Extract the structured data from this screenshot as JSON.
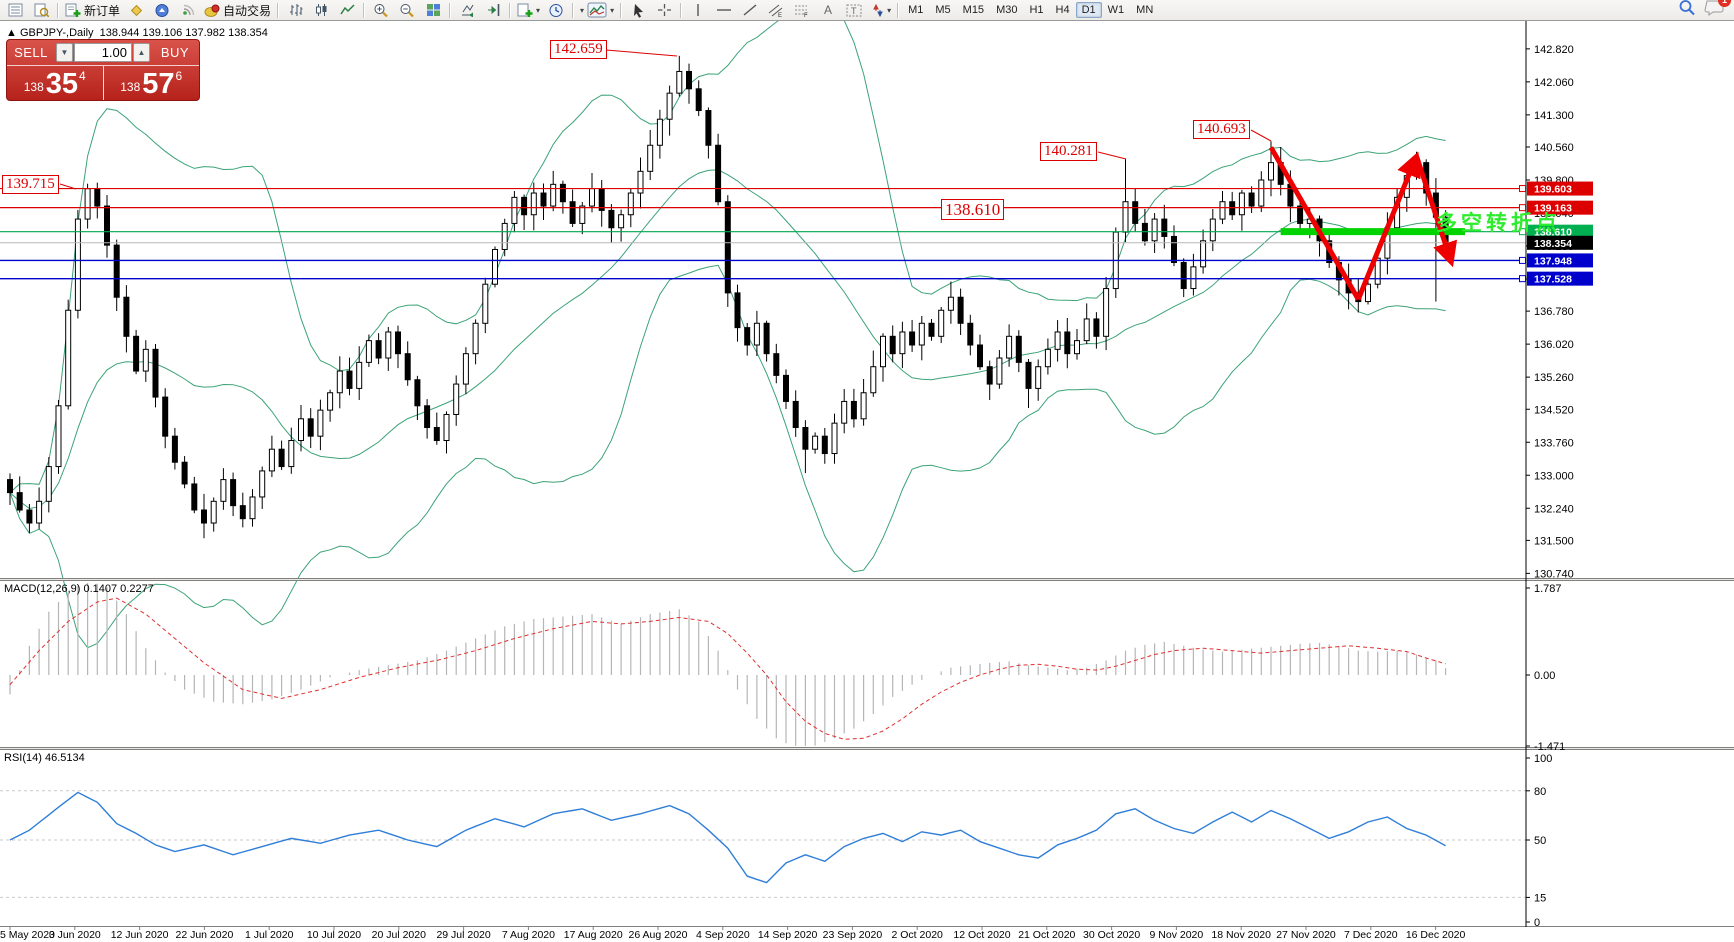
{
  "toolbar": {
    "new_order_label": "新订单",
    "auto_trading_label": "自动交易",
    "timeframes": [
      "M1",
      "M5",
      "M15",
      "M30",
      "H1",
      "H4",
      "D1",
      "W1",
      "MN"
    ],
    "active_timeframe": "D1",
    "chat_badge": "1"
  },
  "chart_header": {
    "collapse_icon": "▲",
    "symbol": "GBPJPY-,Daily",
    "ohlc": "138.944 139.106 137.982 138.354"
  },
  "trade_panel": {
    "sell_label": "SELL",
    "buy_label": "BUY",
    "volume": "1.00",
    "sell_prefix": "138",
    "sell_big": "35",
    "sell_sup": "4",
    "buy_prefix": "138",
    "buy_big": "57",
    "buy_sup": "6"
  },
  "annotations": {
    "left_price_label": "139.715",
    "top_price_label": "142.659",
    "mid_price_label": "138.610",
    "nov_high_label": "140.281",
    "nov_peak_label": "140.693",
    "cn_note": "多空转折点"
  },
  "indicators": {
    "macd_label": "MACD(12,26,9) 0.1407 0.2277",
    "rsi_label": "RSI(14) 46.5134"
  },
  "chart_data": {
    "type": "candlestick",
    "symbol": "GBPJPY-",
    "period": "Daily",
    "current_ohlc": {
      "open": 138.944,
      "high": 139.106,
      "low": 137.982,
      "close": 138.354
    },
    "price_axis_ticks": [
      "142.820",
      "142.060",
      "141.300",
      "140.560",
      "139.800",
      "139.040",
      "138.280",
      "137.520",
      "136.780",
      "136.020",
      "135.260",
      "134.520",
      "133.760",
      "133.000",
      "132.240",
      "131.500",
      "130.740"
    ],
    "price_tags": [
      {
        "value": "139.603",
        "price": 139.603,
        "color": "#dd0000",
        "square": true
      },
      {
        "value": "139.163",
        "price": 139.163,
        "color": "#dd0000",
        "square": true
      },
      {
        "value": "138.610",
        "price": 138.61,
        "color": "#00b050",
        "square": true
      },
      {
        "value": "138.354",
        "price": 138.354,
        "color": "#000000",
        "square": false
      },
      {
        "value": "137.948",
        "price": 137.948,
        "color": "#0000cc",
        "square": true
      },
      {
        "value": "137.528",
        "price": 137.528,
        "color": "#0000cc",
        "square": true
      }
    ],
    "horizontal_lines": [
      {
        "price": 139.603,
        "color": "#dd0000",
        "w": 1.2
      },
      {
        "price": 139.163,
        "color": "#dd0000",
        "w": 1.2
      },
      {
        "price": 138.61,
        "color": "#00a650",
        "w": 1.2
      },
      {
        "price": 138.354,
        "color": "#b8b8b8",
        "w": 1
      },
      {
        "price": 137.948,
        "color": "#0000cc",
        "w": 1.4
      },
      {
        "price": 137.528,
        "color": "#0000cc",
        "w": 1.4
      }
    ],
    "time_axis": [
      "5 May 2020",
      "3 Jun 2020",
      "12 Jun 2020",
      "22 Jun 2020",
      "1 Jul 2020",
      "10 Jul 2020",
      "20 Jul 2020",
      "29 Jul 2020",
      "7 Aug 2020",
      "17 Aug 2020",
      "26 Aug 2020",
      "4 Sep 2020",
      "14 Sep 2020",
      "23 Sep 2020",
      "2 Oct 2020",
      "12 Oct 2020",
      "21 Oct 2020",
      "30 Oct 2020",
      "9 Nov 2020",
      "18 Nov 2020",
      "27 Nov 2020",
      "7 Dec 2020",
      "16 Dec 2020"
    ],
    "closes": [
      132.6,
      132.2,
      131.9,
      132.4,
      133.2,
      134.6,
      136.8,
      138.9,
      139.6,
      139.2,
      138.3,
      137.1,
      136.2,
      135.4,
      135.9,
      134.8,
      133.9,
      133.3,
      132.8,
      132.2,
      131.9,
      132.4,
      132.9,
      132.3,
      132.0,
      132.5,
      133.1,
      133.6,
      133.2,
      133.8,
      134.3,
      133.9,
      134.5,
      134.9,
      135.4,
      135.0,
      135.6,
      136.1,
      135.7,
      136.3,
      135.8,
      135.2,
      134.6,
      134.1,
      133.8,
      134.4,
      135.1,
      135.8,
      136.5,
      137.4,
      138.2,
      138.8,
      139.4,
      139.0,
      139.5,
      139.2,
      139.7,
      139.3,
      138.8,
      139.2,
      139.6,
      139.1,
      138.7,
      139.0,
      139.5,
      140.0,
      140.6,
      141.2,
      141.8,
      142.3,
      141.9,
      141.4,
      140.6,
      139.3,
      137.2,
      136.4,
      136.0,
      136.5,
      135.8,
      135.3,
      134.7,
      134.1,
      133.6,
      133.9,
      133.5,
      134.2,
      134.7,
      134.3,
      134.9,
      135.5,
      136.2,
      135.8,
      136.3,
      136.0,
      136.5,
      136.2,
      136.8,
      137.1,
      136.5,
      136.0,
      135.5,
      135.1,
      135.7,
      136.2,
      135.6,
      135.0,
      135.5,
      135.9,
      136.3,
      135.8,
      136.1,
      136.6,
      136.2,
      137.3,
      138.6,
      139.3,
      138.8,
      138.4,
      138.9,
      138.5,
      137.9,
      137.3,
      137.8,
      138.4,
      138.9,
      139.3,
      139.0,
      139.5,
      139.2,
      139.8,
      140.2,
      139.7,
      139.2,
      138.8,
      138.9,
      138.4,
      137.9,
      137.5,
      137.2,
      137.0,
      137.4,
      138.0,
      138.7,
      139.4,
      139.9,
      140.2,
      139.5,
      138.944,
      138.354
    ],
    "high_overrides": {
      "8": 139.715,
      "69": 142.659,
      "115": 140.281,
      "130": 140.693,
      "145": 140.45,
      "148": 139.106
    },
    "low_overrides": {
      "20": 131.55,
      "24": 131.8,
      "82": 133.05,
      "105": 134.55,
      "139": 136.75,
      "147": 137.0,
      "148": 137.982
    },
    "bollinger": {
      "period": 20,
      "deviation": 2,
      "color": "#3ca377"
    },
    "macd": {
      "axis": [
        "1.787",
        "0.00",
        "-1.471"
      ],
      "hist_anchors": [
        [
          0,
          -0.4
        ],
        [
          2,
          0.6
        ],
        [
          4,
          1.3
        ],
        [
          6,
          1.7
        ],
        [
          8,
          1.95
        ],
        [
          10,
          1.8
        ],
        [
          12,
          1.25
        ],
        [
          14,
          0.55
        ],
        [
          16,
          0.05
        ],
        [
          18,
          -0.3
        ],
        [
          21,
          -0.55
        ],
        [
          24,
          -0.6
        ],
        [
          27,
          -0.5
        ],
        [
          30,
          -0.3
        ],
        [
          33,
          -0.05
        ],
        [
          36,
          0.1
        ],
        [
          39,
          0.2
        ],
        [
          42,
          0.3
        ],
        [
          45,
          0.5
        ],
        [
          48,
          0.75
        ],
        [
          51,
          1.0
        ],
        [
          54,
          1.15
        ],
        [
          57,
          1.2
        ],
        [
          60,
          1.25
        ],
        [
          63,
          1.05
        ],
        [
          66,
          1.25
        ],
        [
          69,
          1.35
        ],
        [
          71,
          1.1
        ],
        [
          73,
          0.5
        ],
        [
          75,
          -0.3
        ],
        [
          77,
          -0.9
        ],
        [
          79,
          -1.3
        ],
        [
          81,
          -1.5
        ],
        [
          83,
          -1.45
        ],
        [
          85,
          -1.3
        ],
        [
          87,
          -1.1
        ],
        [
          89,
          -0.8
        ],
        [
          91,
          -0.45
        ],
        [
          93,
          -0.2
        ],
        [
          95,
          0.0
        ],
        [
          97,
          0.15
        ],
        [
          99,
          0.2
        ],
        [
          101,
          0.25
        ],
        [
          103,
          0.28
        ],
        [
          105,
          0.2
        ],
        [
          107,
          0.15
        ],
        [
          109,
          0.1
        ],
        [
          111,
          0.15
        ],
        [
          113,
          0.3
        ],
        [
          115,
          0.5
        ],
        [
          117,
          0.62
        ],
        [
          119,
          0.68
        ],
        [
          121,
          0.6
        ],
        [
          123,
          0.52
        ],
        [
          125,
          0.48
        ],
        [
          127,
          0.52
        ],
        [
          129,
          0.56
        ],
        [
          131,
          0.6
        ],
        [
          133,
          0.64
        ],
        [
          135,
          0.66
        ],
        [
          137,
          0.6
        ],
        [
          139,
          0.5
        ],
        [
          141,
          0.48
        ],
        [
          143,
          0.5
        ],
        [
          145,
          0.42
        ],
        [
          147,
          0.3
        ],
        [
          148,
          0.1407
        ]
      ],
      "signal_anchors": [
        [
          0,
          -0.2
        ],
        [
          3,
          0.5
        ],
        [
          6,
          1.1
        ],
        [
          9,
          1.5
        ],
        [
          11,
          1.58
        ],
        [
          14,
          1.25
        ],
        [
          17,
          0.75
        ],
        [
          20,
          0.25
        ],
        [
          24,
          -0.3
        ],
        [
          28,
          -0.48
        ],
        [
          32,
          -0.3
        ],
        [
          36,
          -0.05
        ],
        [
          40,
          0.15
        ],
        [
          44,
          0.3
        ],
        [
          48,
          0.5
        ],
        [
          52,
          0.75
        ],
        [
          56,
          0.95
        ],
        [
          60,
          1.1
        ],
        [
          63,
          1.05
        ],
        [
          66,
          1.1
        ],
        [
          69,
          1.18
        ],
        [
          72,
          1.1
        ],
        [
          74,
          0.85
        ],
        [
          76,
          0.45
        ],
        [
          78,
          0.0
        ],
        [
          80,
          -0.55
        ],
        [
          82,
          -0.95
        ],
        [
          84,
          -1.2
        ],
        [
          86,
          -1.32
        ],
        [
          88,
          -1.3
        ],
        [
          90,
          -1.15
        ],
        [
          92,
          -0.9
        ],
        [
          94,
          -0.6
        ],
        [
          96,
          -0.35
        ],
        [
          98,
          -0.15
        ],
        [
          100,
          0.0
        ],
        [
          102,
          0.12
        ],
        [
          104,
          0.2
        ],
        [
          106,
          0.22
        ],
        [
          108,
          0.18
        ],
        [
          110,
          0.12
        ],
        [
          112,
          0.1
        ],
        [
          114,
          0.18
        ],
        [
          116,
          0.3
        ],
        [
          118,
          0.42
        ],
        [
          120,
          0.5
        ],
        [
          123,
          0.55
        ],
        [
          126,
          0.5
        ],
        [
          129,
          0.45
        ],
        [
          132,
          0.5
        ],
        [
          135,
          0.55
        ],
        [
          138,
          0.6
        ],
        [
          141,
          0.55
        ],
        [
          144,
          0.48
        ],
        [
          146,
          0.35
        ],
        [
          148,
          0.2277
        ]
      ]
    },
    "rsi": {
      "axis": [
        "100",
        "80",
        "50",
        "15",
        "0"
      ],
      "levels": [
        80,
        50,
        15
      ],
      "anchors": [
        [
          0,
          50
        ],
        [
          2,
          56
        ],
        [
          5,
          70
        ],
        [
          7,
          79
        ],
        [
          9,
          73
        ],
        [
          11,
          60
        ],
        [
          13,
          54
        ],
        [
          15,
          47
        ],
        [
          17,
          43
        ],
        [
          20,
          47
        ],
        [
          23,
          41
        ],
        [
          26,
          46
        ],
        [
          29,
          51
        ],
        [
          32,
          48
        ],
        [
          35,
          53
        ],
        [
          38,
          56
        ],
        [
          41,
          50
        ],
        [
          44,
          46
        ],
        [
          47,
          56
        ],
        [
          50,
          63
        ],
        [
          53,
          58
        ],
        [
          56,
          66
        ],
        [
          59,
          69
        ],
        [
          62,
          62
        ],
        [
          65,
          66
        ],
        [
          68,
          71
        ],
        [
          70,
          66
        ],
        [
          72,
          56
        ],
        [
          74,
          45
        ],
        [
          76,
          28
        ],
        [
          78,
          24
        ],
        [
          80,
          36
        ],
        [
          82,
          41
        ],
        [
          84,
          37
        ],
        [
          86,
          46
        ],
        [
          88,
          51
        ],
        [
          90,
          54
        ],
        [
          92,
          49
        ],
        [
          94,
          55
        ],
        [
          96,
          53
        ],
        [
          98,
          56
        ],
        [
          100,
          49
        ],
        [
          102,
          45
        ],
        [
          104,
          41
        ],
        [
          106,
          39
        ],
        [
          108,
          47
        ],
        [
          110,
          51
        ],
        [
          112,
          56
        ],
        [
          114,
          66
        ],
        [
          116,
          69
        ],
        [
          118,
          62
        ],
        [
          120,
          57
        ],
        [
          122,
          54
        ],
        [
          124,
          61
        ],
        [
          126,
          67
        ],
        [
          128,
          61
        ],
        [
          130,
          68
        ],
        [
          132,
          63
        ],
        [
          134,
          57
        ],
        [
          136,
          51
        ],
        [
          138,
          55
        ],
        [
          140,
          61
        ],
        [
          142,
          64
        ],
        [
          144,
          57
        ],
        [
          146,
          53
        ],
        [
          148,
          46.51
        ]
      ]
    },
    "drawings": {
      "trend_arrow_points": [
        [
          130,
          140.55
        ],
        [
          139,
          137.05
        ],
        [
          145,
          140.35
        ],
        [
          148.6,
          137.9
        ]
      ],
      "support_bar": {
        "from_bar": 131,
        "to_bar": 150,
        "price": 138.61,
        "color": "#00d300"
      },
      "note_text": "多空转折点"
    }
  }
}
